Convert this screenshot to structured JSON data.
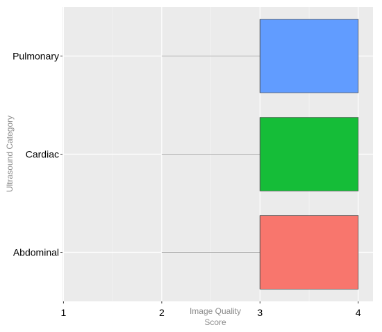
{
  "chart_data": {
    "type": "boxplot",
    "orientation": "horizontal",
    "xlabel_lines": [
      "Image Quality",
      "Score"
    ],
    "ylabel": "Ultrasound Category",
    "xlim": [
      0.99,
      4.15
    ],
    "xticks": [
      1,
      2,
      3,
      4
    ],
    "xtick_labels": [
      "1",
      "2",
      "3",
      "4"
    ],
    "grid": true,
    "legend": "none",
    "categories": [
      "Abdominal",
      "Cardiac",
      "Pulmonary"
    ],
    "series": [
      {
        "category": "Abdominal",
        "whisker_low": 2,
        "q1": 3,
        "median": 3,
        "q3": 4,
        "whisker_high": 4,
        "color": "#f8766d"
      },
      {
        "category": "Cardiac",
        "whisker_low": 2,
        "q1": 3,
        "median": 3,
        "q3": 4,
        "whisker_high": 4,
        "color": "#15bd38"
      },
      {
        "category": "Pulmonary",
        "whisker_low": 2,
        "q1": 3,
        "median": 3,
        "q3": 4,
        "whisker_high": 4,
        "color": "#619cff"
      }
    ],
    "colors": {
      "panel_bg": "#ebebeb",
      "grid_major": "#ffffff",
      "grid_minor": "#f4f4f4",
      "whisker": "#a6a6a6",
      "box_border": "#555555"
    }
  }
}
